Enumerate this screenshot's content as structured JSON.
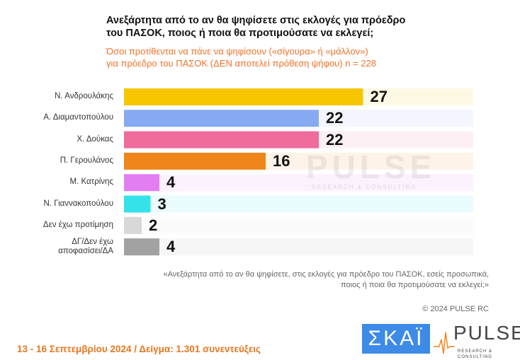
{
  "chart_data": {
    "type": "bar",
    "orientation": "horizontal",
    "title": "Ανεξάρτητα από το αν θα ψηφίσετε στις εκλογές για πρόεδρο του ΠΑΣΟΚ, ποιος ή ποια θα προτιμούσατε να εκλεγεί;",
    "title_lines": [
      "Ανεξάρτητα από το αν θα ψηφίσετε στις εκλογές για πρόεδρο",
      "του ΠΑΣΟΚ, ποιος ή ποια θα προτιμούσατε να εκλεγεί;"
    ],
    "subtitle_lines": [
      "Όσοι προτίθενται να πάνε να ψηφίσουν («σίγουρα» ή «μάλλον»)",
      "για πρόεδρο του ΠΑΣΟΚ   (ΔΕΝ αποτελεί πρόθεση ψήφου)   n = 228"
    ],
    "categories": [
      "Ν. Ανδρουλάκης",
      "Α. Διαμαντοπούλου",
      "Χ. Δούκας",
      "Π. Γερουλάνος",
      "Μ. Κατρίνης",
      "Ν. Γιαννακοπούλου",
      "Δεν έχω προτίμηση",
      "ΔΓ/Δεν έχω αποφασίσει/ΔΑ"
    ],
    "values": [
      27,
      22,
      22,
      16,
      4,
      3,
      2,
      4
    ],
    "colors": [
      "#f7c600",
      "#86aaf2",
      "#f06c9c",
      "#f0861a",
      "#e27ef2",
      "#34e2ea",
      "#d8d8d8",
      "#a2a2a2"
    ],
    "xlim": [
      0,
      40
    ]
  },
  "watermark": "PULSE",
  "watermark_sub": "RESEARCH & CONSULTING",
  "note_lines": [
    "«Ανεξάρτητα από το αν θα ψηφίσετε, στις εκλογές για πρόεδρο του ΠΑΣΟΚ, εσείς προσωπικά,",
    "ποιος ή ποια θα προτιμούσατε να εκλεγεί;»"
  ],
  "copyright": "© 2024 PULSE RC",
  "footer": "13 - 16 Σεπτεμβρίου 2024  /  Δείγμα:  1.301 συνεντεύξεις",
  "logos": {
    "skai": "ΣΚΑΪ",
    "pulse": "PULSE",
    "pulse_sub": "RESEARCH & CONSULTING"
  }
}
